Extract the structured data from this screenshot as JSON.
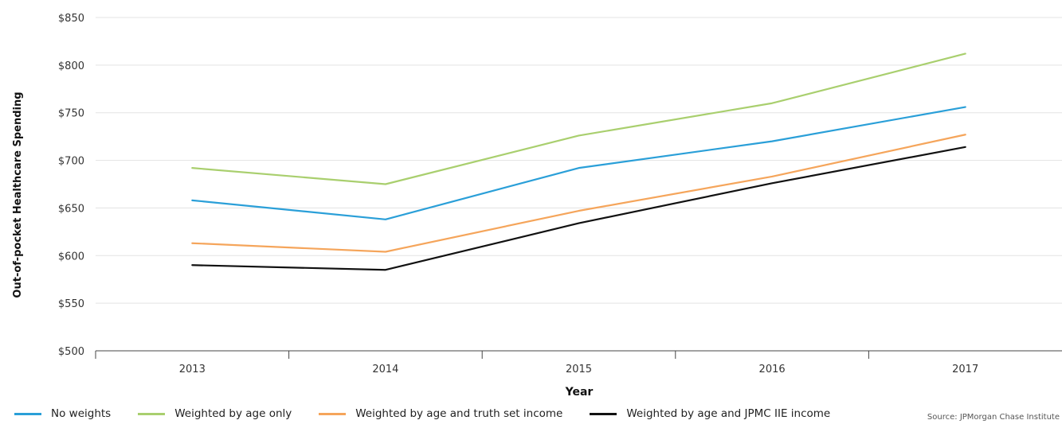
{
  "chart_data": {
    "type": "line",
    "categories": [
      "2013",
      "2014",
      "2015",
      "2016",
      "2017"
    ],
    "ylim": [
      500,
      850
    ],
    "yticks": [
      500,
      550,
      600,
      650,
      700,
      750,
      800,
      850
    ],
    "ytick_labels": [
      "$500",
      "$550",
      "$600",
      "$650",
      "$700",
      "$750",
      "$800",
      "$850"
    ],
    "xlabel": "Year",
    "ylabel": "Out-of-pocket Healthcare Spending",
    "grid": true,
    "legend_position": "bottom-left",
    "series": [
      {
        "name": "No weights",
        "color": "#2a9fd8",
        "values": [
          658,
          638,
          692,
          720,
          756
        ]
      },
      {
        "name": "Weighted by age only",
        "color": "#a9cf6e",
        "values": [
          692,
          675,
          726,
          760,
          812
        ]
      },
      {
        "name": "Weighted by age and truth set income",
        "color": "#f5a55b",
        "values": [
          613,
          604,
          647,
          683,
          727
        ]
      },
      {
        "name": "Weighted by age and JPMC IIE income",
        "color": "#111111",
        "values": [
          590,
          585,
          634,
          676,
          714
        ]
      }
    ]
  },
  "source_text": "Source: JPMorgan Chase Institute"
}
